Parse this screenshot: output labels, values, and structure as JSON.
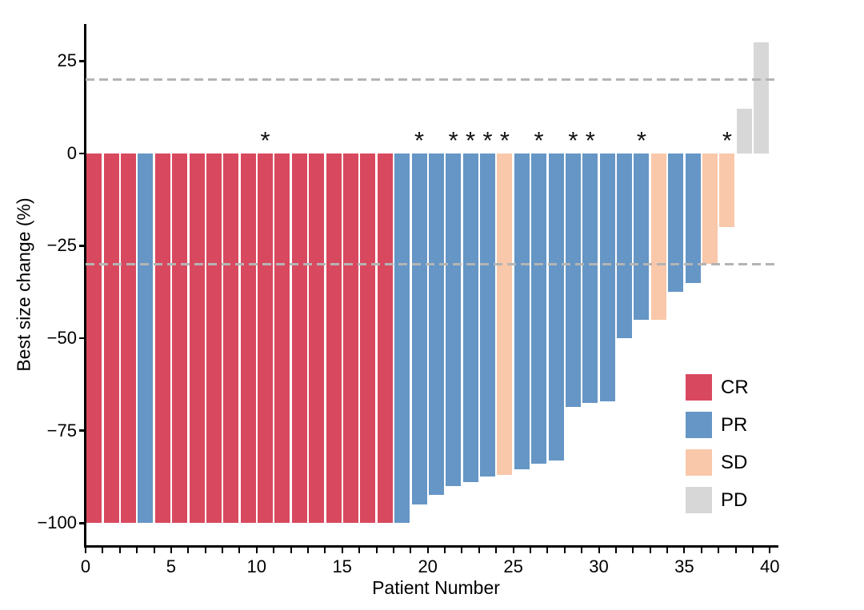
{
  "chart_data": {
    "type": "bar",
    "title": "",
    "xlabel": "Patient Number",
    "ylabel": "Best size change (%)",
    "x_tick_labeled_values": [
      0,
      5,
      10,
      15,
      20,
      25,
      30,
      35,
      40
    ],
    "x_tick_minor_every": 1,
    "y_tick_values": [
      25,
      0,
      -25,
      -50,
      -75,
      -100
    ],
    "xlim": [
      0,
      40.5
    ],
    "ylim": [
      35,
      -106
    ],
    "grid": false,
    "reference_lines_y": [
      20,
      -30
    ],
    "legend_position": "inside-right",
    "legend": [
      {
        "label": "CR",
        "color": "#d8495f"
      },
      {
        "label": "PR",
        "color": "#6596c5"
      },
      {
        "label": "SD",
        "color": "#f9c7a9"
      },
      {
        "label": "PD",
        "color": "#d7d7d7"
      }
    ],
    "starred_patients": [
      11,
      20,
      22,
      23,
      24,
      25,
      27,
      29,
      30,
      33,
      38
    ],
    "patients": [
      {
        "n": 1,
        "value": -100,
        "response": "CR"
      },
      {
        "n": 2,
        "value": -100,
        "response": "CR"
      },
      {
        "n": 3,
        "value": -100,
        "response": "CR"
      },
      {
        "n": 4,
        "value": -100,
        "response": "PR"
      },
      {
        "n": 5,
        "value": -100,
        "response": "CR"
      },
      {
        "n": 6,
        "value": -100,
        "response": "CR"
      },
      {
        "n": 7,
        "value": -100,
        "response": "CR"
      },
      {
        "n": 8,
        "value": -100,
        "response": "CR"
      },
      {
        "n": 9,
        "value": -100,
        "response": "CR"
      },
      {
        "n": 10,
        "value": -100,
        "response": "CR"
      },
      {
        "n": 11,
        "value": -100,
        "response": "CR"
      },
      {
        "n": 12,
        "value": -100,
        "response": "CR"
      },
      {
        "n": 13,
        "value": -100,
        "response": "CR"
      },
      {
        "n": 14,
        "value": -100,
        "response": "CR"
      },
      {
        "n": 15,
        "value": -100,
        "response": "CR"
      },
      {
        "n": 16,
        "value": -100,
        "response": "CR"
      },
      {
        "n": 17,
        "value": -100,
        "response": "CR"
      },
      {
        "n": 18,
        "value": -100,
        "response": "CR"
      },
      {
        "n": 19,
        "value": -100,
        "response": "PR"
      },
      {
        "n": 20,
        "value": -95,
        "response": "PR"
      },
      {
        "n": 21,
        "value": -92.5,
        "response": "PR"
      },
      {
        "n": 22,
        "value": -90,
        "response": "PR"
      },
      {
        "n": 23,
        "value": -89,
        "response": "PR"
      },
      {
        "n": 24,
        "value": -87.5,
        "response": "PR"
      },
      {
        "n": 25,
        "value": -87,
        "response": "SD"
      },
      {
        "n": 26,
        "value": -85.5,
        "response": "PR"
      },
      {
        "n": 27,
        "value": -84,
        "response": "PR"
      },
      {
        "n": 28,
        "value": -83,
        "response": "PR"
      },
      {
        "n": 29,
        "value": -68.5,
        "response": "PR"
      },
      {
        "n": 30,
        "value": -67.5,
        "response": "PR"
      },
      {
        "n": 31,
        "value": -67,
        "response": "PR"
      },
      {
        "n": 32,
        "value": -50,
        "response": "PR"
      },
      {
        "n": 33,
        "value": -45,
        "response": "PR"
      },
      {
        "n": 34,
        "value": -45,
        "response": "SD"
      },
      {
        "n": 35,
        "value": -37.5,
        "response": "PR"
      },
      {
        "n": 36,
        "value": -35,
        "response": "PR"
      },
      {
        "n": 37,
        "value": -30,
        "response": "SD"
      },
      {
        "n": 38,
        "value": -20,
        "response": "SD"
      },
      {
        "n": 39,
        "value": 12,
        "response": "PD"
      },
      {
        "n": 40,
        "value": 30,
        "response": "PD"
      }
    ],
    "asterisk_glyph": "*"
  },
  "styles": {
    "background": "#ffffff",
    "axis_color": "#000000",
    "text_color": "#000000",
    "reference_line_color": "#b4b4b4",
    "response_colors": {
      "CR": "#d8495f",
      "PR": "#6596c5",
      "SD": "#f9c7a9",
      "PD": "#d7d7d7"
    }
  }
}
